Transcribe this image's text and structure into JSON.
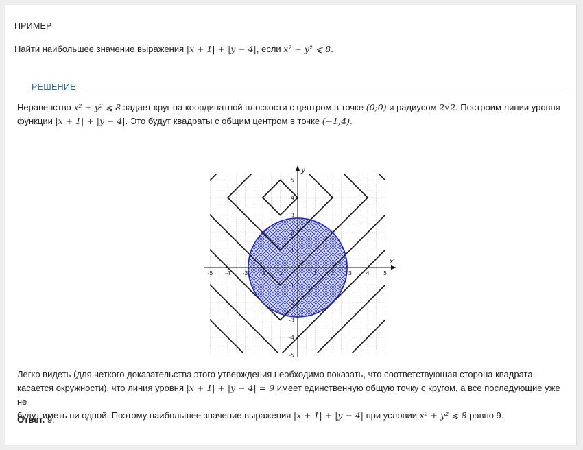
{
  "example_label": "ПРИМЕР",
  "task": {
    "text_before": "Найти наибольшее значение выражения ",
    "expr": "|x + 1| + |y − 4|",
    "text_mid": ", если ",
    "condition": "x² + y² ⩽ 8",
    "text_end": "."
  },
  "solution_label": "РЕШЕНИЕ",
  "para1": {
    "t1": "Неравенство ",
    "m1": "x² + y² ⩽ 8",
    "t2": " задает круг на координатной плоскости с центром в точке ",
    "m2": "(0;0)",
    "t3": " и радиусом ",
    "m3": "2√2",
    "t4": ". Построим линии уровня",
    "t5": "функции ",
    "m4": "|x + 1| + |y − 4|",
    "t6": ". Это будут квадраты с общим центром в точке ",
    "m5": "(−1;4)",
    "t7": "."
  },
  "figure": {
    "x_axis_label": "x",
    "y_axis_label": "y",
    "tick_labels_x": [
      "-5",
      "-4",
      "-3",
      "-2",
      "-1",
      "1",
      "2",
      "3",
      "4",
      "5"
    ],
    "tick_labels_y": [
      "5",
      "4",
      "3",
      "2",
      "1",
      "-1",
      "-2",
      "-3",
      "-4",
      "-5"
    ],
    "circle_color": "#1f22c8",
    "hatch_color": "#2230c0",
    "square_center": [
      -1,
      4
    ],
    "level_values": [
      1,
      3,
      5,
      7,
      9,
      11,
      13
    ],
    "circle_radius": 2.828
  },
  "para2": {
    "l1": "Легко видеть (для четкого доказательства этого утверждения необходимо показать, что соответствующая сторона квадрата",
    "l2a": "касается окружности), что линия уровня ",
    "m1": "|x + 1| + |y − 4| = 9",
    "l2b": " имеет единственную общую точку с кругом, а все последующие уже не",
    "l3a": "будут иметь ни одной. Поэтому наибольшее значение выражения ",
    "m2": "|x + 1| + |y − 4|",
    "l3b": " при условии ",
    "m3": "x² + y² ⩽ 8",
    "l3c": " равно 9."
  },
  "answer": {
    "label": "Ответ.",
    "value": " 9."
  }
}
